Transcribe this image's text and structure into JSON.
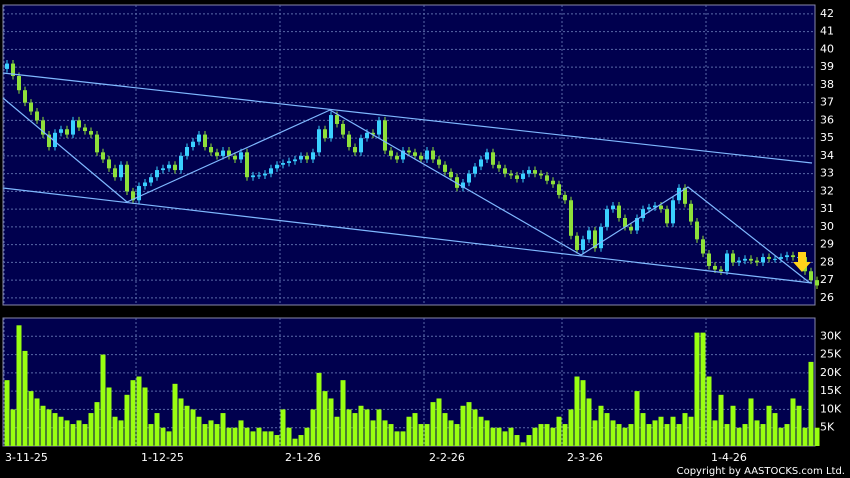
{
  "chart_data": [
    {
      "type": "candlestick",
      "categories": [
        "3-11-25",
        null,
        null,
        null,
        null,
        null,
        null,
        null,
        null,
        null,
        null,
        null,
        null,
        null,
        null,
        null,
        null,
        null,
        null,
        null,
        null,
        null,
        "1-12-25",
        null,
        null,
        null,
        null,
        null,
        null,
        null,
        null,
        null,
        null,
        null,
        null,
        null,
        null,
        null,
        null,
        null,
        null,
        null,
        null,
        null,
        null,
        null,
        "2-1-26",
        null,
        null,
        null,
        null,
        null,
        null,
        null,
        null,
        null,
        null,
        null,
        null,
        null,
        null,
        null,
        null,
        null,
        null,
        null,
        null,
        null,
        null,
        null,
        "2-2-26",
        null,
        null,
        null,
        null,
        null,
        null,
        null,
        null,
        null,
        null,
        null,
        null,
        null,
        null,
        null,
        null,
        null,
        null,
        null,
        null,
        null,
        null,
        "2-3-26",
        null,
        null,
        null,
        null,
        null,
        null,
        null,
        null,
        null,
        null,
        null,
        null,
        null,
        null,
        null,
        null,
        null,
        null,
        null,
        null,
        null,
        null,
        null,
        "1-4-26",
        null,
        null,
        null,
        null,
        null,
        null,
        null,
        null,
        null,
        null,
        null,
        null,
        null,
        null,
        null,
        null,
        null,
        null
      ],
      "open": [
        38.9,
        39.2,
        38.5,
        37.7,
        37.0,
        36.5,
        36.0,
        35.2,
        34.5,
        35.3,
        35.5,
        35.2,
        36.0,
        35.6,
        35.4,
        35.2,
        34.2,
        33.8,
        33.3,
        32.8,
        33.5,
        32.0,
        31.5,
        32.3,
        32.5,
        32.8,
        33.2,
        33.3,
        33.5,
        33.2,
        34.0,
        34.5,
        34.8,
        35.2,
        34.5,
        34.2,
        34.0,
        34.3,
        34.0,
        33.8,
        34.2,
        32.8,
        32.9,
        32.9,
        33.0,
        33.3,
        33.5,
        33.6,
        33.7,
        33.8,
        34.0,
        33.8,
        34.2,
        35.5,
        35.0,
        36.3,
        35.8,
        35.2,
        34.5,
        34.2,
        35.0,
        35.3,
        35.2,
        36.0,
        34.3,
        34.0,
        33.8,
        34.3,
        34.2,
        34.0,
        33.8,
        34.3,
        33.8,
        33.5,
        33.1,
        32.8,
        32.2,
        32.5,
        33.0,
        33.4,
        33.8,
        34.2,
        33.5,
        33.3,
        33.0,
        32.9,
        32.7,
        33.0,
        33.2,
        33.0,
        32.9,
        32.6,
        32.4,
        31.8,
        31.5,
        29.5,
        28.7,
        29.3,
        29.8,
        28.8,
        30.0,
        31.0,
        31.2,
        30.5,
        30.0,
        29.8,
        30.5,
        31.0,
        31.1,
        31.2,
        31.0,
        30.2,
        31.5,
        32.2,
        31.3,
        30.3,
        29.3,
        28.5,
        27.8,
        27.6,
        27.5,
        28.5,
        28.0,
        28.1,
        28.2,
        28.1,
        28.0,
        28.3,
        28.2,
        28.2,
        28.3,
        28.4,
        28.3,
        28.3,
        27.5,
        27.0
      ],
      "high": [
        39.4,
        39.4,
        38.7,
        37.9,
        37.2,
        36.7,
        36.2,
        35.4,
        35.5,
        35.7,
        35.7,
        36.2,
        36.2,
        35.8,
        35.6,
        35.4,
        34.4,
        34.0,
        33.5,
        33.7,
        33.7,
        32.2,
        32.5,
        32.7,
        33.0,
        33.4,
        33.5,
        33.7,
        33.7,
        34.2,
        34.7,
        35.0,
        35.4,
        35.4,
        34.7,
        34.4,
        34.5,
        34.5,
        34.2,
        34.4,
        34.4,
        33.1,
        33.1,
        33.2,
        33.5,
        33.7,
        33.8,
        33.9,
        34.0,
        34.2,
        34.2,
        34.4,
        35.7,
        35.7,
        36.5,
        36.5,
        36.0,
        35.4,
        34.7,
        35.2,
        35.5,
        35.5,
        36.2,
        36.2,
        34.5,
        34.2,
        34.5,
        34.5,
        34.4,
        34.2,
        34.5,
        34.5,
        34.0,
        33.7,
        33.3,
        33.0,
        32.7,
        33.2,
        33.6,
        34.0,
        34.4,
        34.4,
        33.7,
        33.5,
        33.2,
        33.1,
        33.2,
        33.4,
        33.4,
        33.2,
        33.1,
        32.8,
        32.6,
        32.0,
        31.7,
        29.7,
        29.5,
        30.0,
        30.0,
        30.2,
        31.2,
        31.4,
        31.4,
        30.7,
        30.2,
        30.7,
        31.2,
        31.3,
        31.4,
        31.4,
        31.2,
        31.7,
        32.4,
        32.4,
        31.5,
        30.5,
        29.5,
        28.7,
        28.0,
        27.8,
        28.7,
        28.7,
        28.3,
        28.4,
        28.4,
        28.3,
        28.5,
        28.5,
        28.4,
        28.5,
        28.6,
        28.6,
        28.5,
        28.5,
        27.7,
        27.2
      ],
      "low": [
        38.7,
        38.3,
        37.5,
        36.8,
        36.3,
        35.8,
        35.0,
        34.3,
        34.3,
        35.1,
        35.0,
        35.0,
        35.4,
        35.2,
        35.0,
        34.0,
        33.6,
        33.1,
        32.6,
        32.6,
        31.8,
        31.3,
        31.3,
        32.1,
        32.3,
        32.6,
        33.0,
        33.1,
        33.0,
        33.0,
        33.8,
        34.3,
        34.6,
        34.3,
        34.0,
        33.8,
        33.8,
        33.8,
        33.6,
        33.6,
        32.6,
        32.6,
        32.7,
        32.7,
        32.8,
        33.1,
        33.3,
        33.4,
        33.5,
        33.6,
        33.6,
        33.6,
        34.0,
        34.8,
        34.8,
        35.6,
        35.0,
        34.3,
        34.0,
        34.0,
        34.8,
        35.0,
        35.0,
        34.1,
        33.8,
        33.6,
        33.6,
        34.0,
        33.8,
        33.6,
        33.6,
        33.6,
        33.3,
        32.9,
        32.6,
        32.0,
        32.0,
        32.3,
        32.8,
        33.2,
        33.6,
        33.3,
        33.1,
        32.8,
        32.7,
        32.5,
        32.5,
        32.8,
        32.8,
        32.7,
        32.4,
        32.2,
        31.6,
        31.3,
        29.3,
        28.5,
        28.5,
        29.1,
        28.6,
        28.6,
        29.8,
        30.8,
        30.3,
        29.8,
        29.6,
        29.6,
        30.3,
        30.8,
        30.9,
        30.8,
        30.0,
        30.0,
        31.3,
        31.1,
        30.1,
        29.1,
        28.3,
        27.6,
        27.4,
        27.3,
        27.3,
        27.8,
        27.8,
        27.9,
        27.9,
        27.8,
        27.8,
        28.0,
        28.0,
        28.0,
        28.1,
        28.1,
        28.1,
        27.3,
        26.8,
        26.5
      ],
      "close": [
        39.2,
        38.5,
        37.7,
        37.0,
        36.5,
        36.0,
        35.2,
        34.5,
        35.3,
        35.5,
        35.2,
        36.0,
        35.6,
        35.4,
        35.2,
        34.2,
        33.8,
        33.3,
        32.8,
        33.5,
        32.0,
        31.5,
        32.3,
        32.5,
        32.8,
        33.2,
        33.3,
        33.5,
        33.2,
        34.0,
        34.5,
        34.8,
        35.2,
        34.5,
        34.2,
        34.0,
        34.3,
        34.0,
        33.8,
        34.2,
        32.8,
        32.9,
        32.9,
        33.0,
        33.3,
        33.5,
        33.6,
        33.7,
        33.8,
        34.0,
        33.8,
        34.2,
        35.5,
        35.0,
        36.3,
        35.8,
        35.2,
        34.5,
        34.2,
        35.0,
        35.3,
        35.2,
        36.0,
        34.3,
        34.0,
        33.8,
        34.3,
        34.2,
        34.0,
        33.8,
        34.3,
        33.8,
        33.5,
        33.1,
        32.8,
        32.2,
        32.5,
        33.0,
        33.4,
        33.8,
        34.2,
        33.5,
        33.3,
        33.0,
        32.9,
        32.7,
        33.0,
        33.2,
        33.0,
        32.9,
        32.6,
        32.4,
        31.8,
        31.5,
        29.5,
        28.7,
        29.3,
        29.8,
        28.8,
        30.0,
        31.0,
        31.2,
        30.5,
        30.0,
        29.8,
        30.5,
        31.0,
        31.1,
        31.2,
        31.0,
        30.2,
        31.5,
        32.2,
        31.3,
        30.3,
        29.3,
        28.5,
        27.8,
        27.6,
        27.5,
        28.5,
        28.0,
        28.1,
        28.2,
        28.1,
        28.0,
        28.3,
        28.2,
        28.2,
        28.3,
        28.4,
        28.3,
        28.3,
        27.5,
        27.0,
        26.7
      ],
      "up_color": "#3ad0ff",
      "down_color": "#8ee03a",
      "ylim": [
        25.6,
        42.5
      ],
      "yticks": [
        26,
        27,
        28,
        29,
        30,
        31,
        32,
        33,
        34,
        35,
        36,
        37,
        38,
        39,
        40,
        41,
        42
      ],
      "grid": true
    },
    {
      "type": "bar",
      "values": [
        18000,
        10000,
        33000,
        26000,
        15000,
        13000,
        11000,
        10000,
        9000,
        8000,
        7000,
        6000,
        7000,
        6000,
        9000,
        12000,
        25000,
        16000,
        8000,
        7000,
        14000,
        18000,
        19000,
        16000,
        6000,
        9000,
        5000,
        4000,
        17000,
        13000,
        11000,
        10000,
        8000,
        6000,
        7000,
        6000,
        9000,
        5000,
        5000,
        7000,
        5000,
        4000,
        5000,
        4000,
        4000,
        3000,
        10000,
        5000,
        2000,
        3000,
        5000,
        10000,
        20000,
        15000,
        13000,
        8000,
        18000,
        10000,
        9000,
        11000,
        10000,
        7000,
        10000,
        7000,
        6000,
        4000,
        4000,
        8000,
        9000,
        6000,
        6000,
        12000,
        13000,
        9000,
        7000,
        6000,
        11000,
        12000,
        10000,
        8000,
        7000,
        5000,
        5000,
        4000,
        5000,
        3000,
        1000,
        3000,
        5000,
        6000,
        6000,
        5000,
        8000,
        6000,
        10000,
        19000,
        18000,
        13000,
        7000,
        11000,
        9000,
        7000,
        6000,
        5000,
        6000,
        15000,
        9000,
        6000,
        7000,
        8000,
        6000,
        8000,
        6000,
        9000,
        8000,
        31000,
        31000,
        19000,
        7000,
        14000,
        6000,
        11000,
        5000,
        6000,
        13000,
        7000,
        6000,
        11000,
        9000,
        5000,
        6000,
        13000,
        11000,
        5000,
        23000,
        5000
      ],
      "color": "#99ff11",
      "ylim": [
        0,
        35000
      ],
      "yticks": [
        {
          "value": 5000,
          "label": "5K"
        },
        {
          "value": 10000,
          "label": "10K"
        },
        {
          "value": 15000,
          "label": "15K"
        },
        {
          "value": 20000,
          "label": "20K"
        },
        {
          "value": 25000,
          "label": "25K"
        },
        {
          "value": 30000,
          "label": "30K"
        }
      ],
      "grid": true
    }
  ],
  "copyright": "Copyright by AASTOCKS.com Ltd."
}
